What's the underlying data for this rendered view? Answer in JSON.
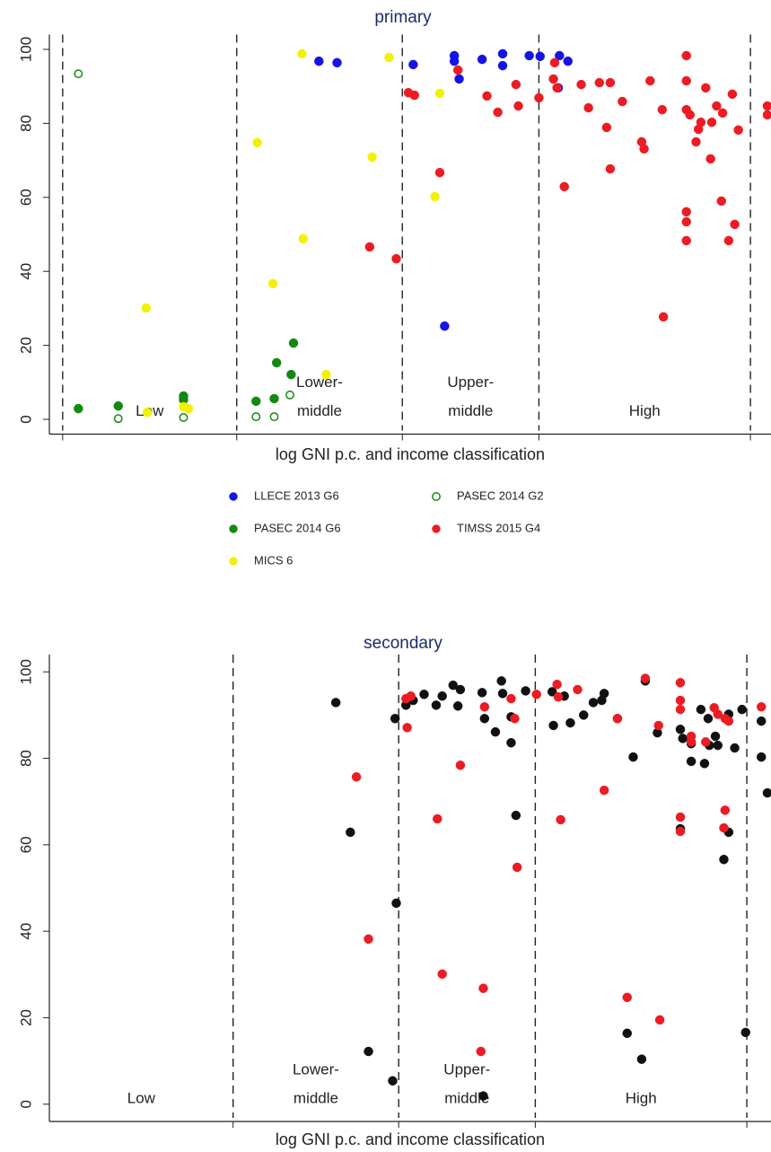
{
  "chart_data": [
    {
      "type": "scatter",
      "title": "primary",
      "x_label": "log GNI p.c. and income classification",
      "xlim": [
        5.4,
        11.37
      ],
      "ylim": [
        -4,
        104
      ],
      "yticks": [
        0,
        20,
        40,
        60,
        80,
        100
      ],
      "dividers": [
        5.51,
        6.95,
        8.32,
        9.45,
        11.2
      ],
      "annotations": [
        [
          "Low"
        ],
        [
          "Lower-",
          "middle"
        ],
        [
          "Upper-",
          "middle"
        ],
        [
          "High"
        ]
      ],
      "legend": "bottom",
      "series": [
        {
          "name": "LLECE 2013 G6",
          "color": "#1414e6",
          "marker": "filled",
          "x": [
            7.63,
            7.78,
            8.41,
            8.75,
            8.75,
            8.79,
            8.98,
            9.15,
            9.15,
            9.37,
            9.46,
            9.62,
            9.61,
            9.69,
            8.67
          ],
          "values": [
            96.8,
            96.4,
            95.9,
            98.3,
            96.8,
            92.0,
            97.3,
            98.8,
            95.6,
            98.3,
            98.1,
            98.3,
            89.6,
            96.8,
            25.2
          ]
        },
        {
          "name": "PASEC 2014 G2",
          "color": "#128a12",
          "marker": "hollow",
          "x": [
            5.64,
            5.97,
            6.51,
            7.11,
            7.26,
            7.39
          ],
          "values": [
            93.4,
            0.2,
            0.5,
            0.7,
            0.7,
            6.6
          ]
        },
        {
          "name": "PASEC 2014 G6",
          "color": "#128a12",
          "marker": "filled",
          "x": [
            5.64,
            5.97,
            6.51,
            6.51,
            7.11,
            7.28,
            7.26,
            7.42,
            7.4
          ],
          "values": [
            2.9,
            3.6,
            6.3,
            5.3,
            4.9,
            15.3,
            5.6,
            20.6,
            12.1
          ]
        },
        {
          "name": "TIMSS 2015 G4",
          "color": "#ec1c24",
          "marker": "filled",
          "x": [
            8.05,
            8.27,
            8.37,
            8.42,
            8.63,
            8.78,
            9.02,
            9.11,
            9.26,
            9.28,
            9.45,
            9.58,
            9.57,
            9.6,
            9.66,
            9.8,
            9.86,
            9.95,
            10.01,
            10.04,
            10.04,
            10.14,
            10.3,
            10.32,
            10.37,
            10.47,
            10.48,
            10.67,
            10.67,
            10.67,
            10.7,
            10.67,
            10.67,
            10.67,
            10.75,
            10.77,
            10.79,
            10.83,
            10.87,
            10.88,
            10.92,
            10.96,
            10.97,
            11.02,
            11.05,
            11.07,
            11.1,
            11.34,
            11.34
          ],
          "values": [
            46.6,
            43.4,
            88.3,
            87.6,
            66.7,
            94.4,
            87.4,
            83.0,
            90.5,
            84.7,
            86.9,
            96.4,
            92.0,
            89.6,
            62.9,
            90.5,
            84.2,
            91.0,
            78.9,
            67.7,
            91.0,
            85.9,
            75.0,
            73.1,
            91.5,
            83.7,
            27.7,
            98.3,
            91.5,
            83.7,
            82.3,
            56.1,
            53.4,
            48.3,
            75.0,
            78.4,
            80.3,
            89.6,
            70.4,
            80.3,
            84.7,
            59.0,
            82.8,
            48.3,
            87.9,
            52.7,
            78.2,
            84.7,
            82.3
          ]
        },
        {
          "name": "MICS 6",
          "color": "#f2f200",
          "marker": "filled",
          "x": [
            6.2,
            6.21,
            6.51,
            6.55,
            7.12,
            7.25,
            7.5,
            7.49,
            7.69,
            8.07,
            8.21,
            8.59,
            8.63
          ],
          "values": [
            30.1,
            1.9,
            3.4,
            2.9,
            74.8,
            36.7,
            48.8,
            98.8,
            12.1,
            70.9,
            97.8,
            60.2,
            88.1
          ]
        }
      ]
    },
    {
      "type": "scatter",
      "title": "secondary",
      "x_label": "log GNI p.c. and income classification",
      "xlim": [
        5.43,
        11.4
      ],
      "ylim": [
        -4,
        104
      ],
      "yticks": [
        0,
        20,
        40,
        60,
        80,
        100
      ],
      "dividers": [
        6.95,
        8.32,
        9.45,
        11.2
      ],
      "annotations": [
        [
          "Low"
        ],
        [
          "Lower-",
          "middle"
        ],
        [
          "Upper-",
          "middle"
        ],
        [
          "High"
        ]
      ],
      "series": [
        {
          "color": "#111111",
          "marker": "filled",
          "x": [
            7.8,
            7.92,
            8.07,
            8.29,
            8.3,
            8.27,
            8.38,
            8.44,
            8.53,
            8.63,
            8.68,
            8.77,
            8.81,
            8.83,
            9.01,
            9.03,
            9.12,
            9.17,
            9.18,
            9.25,
            9.25,
            9.29,
            9.37,
            9.02,
            9.59,
            9.6,
            9.69,
            9.74,
            9.85,
            9.93,
            10.0,
            10.02,
            10.13,
            10.36,
            10.26,
            10.33,
            10.21,
            10.46,
            10.65,
            10.67,
            10.65,
            10.74,
            10.74,
            10.82,
            10.85,
            10.88,
            10.89,
            10.94,
            10.96,
            11.01,
            11.05,
            11.05,
            11.1,
            11.16,
            11.19,
            11.32,
            11.32,
            11.37
          ],
          "values": [
            92.9,
            62.9,
            12.2,
            89.2,
            46.5,
            5.4,
            92.3,
            93.4,
            94.8,
            92.3,
            94.4,
            96.9,
            92.1,
            95.9,
            95.2,
            89.2,
            86.1,
            97.9,
            95.0,
            89.6,
            83.6,
            66.8,
            95.6,
            1.9,
            95.4,
            87.6,
            94.4,
            88.2,
            90.0,
            92.9,
            93.4,
            95.0,
            89.2,
            97.9,
            80.3,
            10.4,
            16.4,
            85.9,
            86.7,
            84.6,
            63.7,
            83.4,
            79.3,
            91.3,
            78.8,
            89.2,
            83.0,
            85.1,
            83.0,
            56.6,
            62.9,
            90.2,
            82.4,
            91.3,
            16.6,
            88.6,
            80.3,
            72.0
          ]
        },
        {
          "color": "#ec1c24",
          "marker": "filled",
          "x": [
            7.97,
            8.07,
            8.38,
            8.39,
            8.42,
            8.64,
            8.68,
            8.83,
            9.02,
            9.0,
            9.03,
            9.25,
            9.28,
            9.3,
            9.46,
            9.63,
            9.64,
            9.66,
            9.8,
            10.13,
            10.02,
            10.21,
            10.36,
            10.47,
            10.48,
            10.65,
            10.65,
            10.65,
            10.74,
            10.74,
            10.65,
            10.65,
            10.86,
            10.93,
            10.96,
            11.02,
            11.05,
            11.02,
            11.01,
            11.32
          ],
          "values": [
            75.7,
            38.2,
            93.8,
            87.1,
            94.4,
            66.0,
            30.1,
            78.4,
            26.8,
            12.2,
            91.9,
            93.8,
            89.2,
            54.8,
            94.8,
            97.1,
            94.2,
            65.8,
            95.9,
            89.2,
            72.6,
            24.7,
            98.5,
            87.6,
            19.5,
            97.5,
            93.4,
            91.3,
            85.1,
            83.8,
            66.4,
            63.1,
            83.8,
            91.7,
            90.2,
            89.2,
            88.6,
            68.0,
            63.9,
            91.9
          ]
        }
      ]
    }
  ]
}
